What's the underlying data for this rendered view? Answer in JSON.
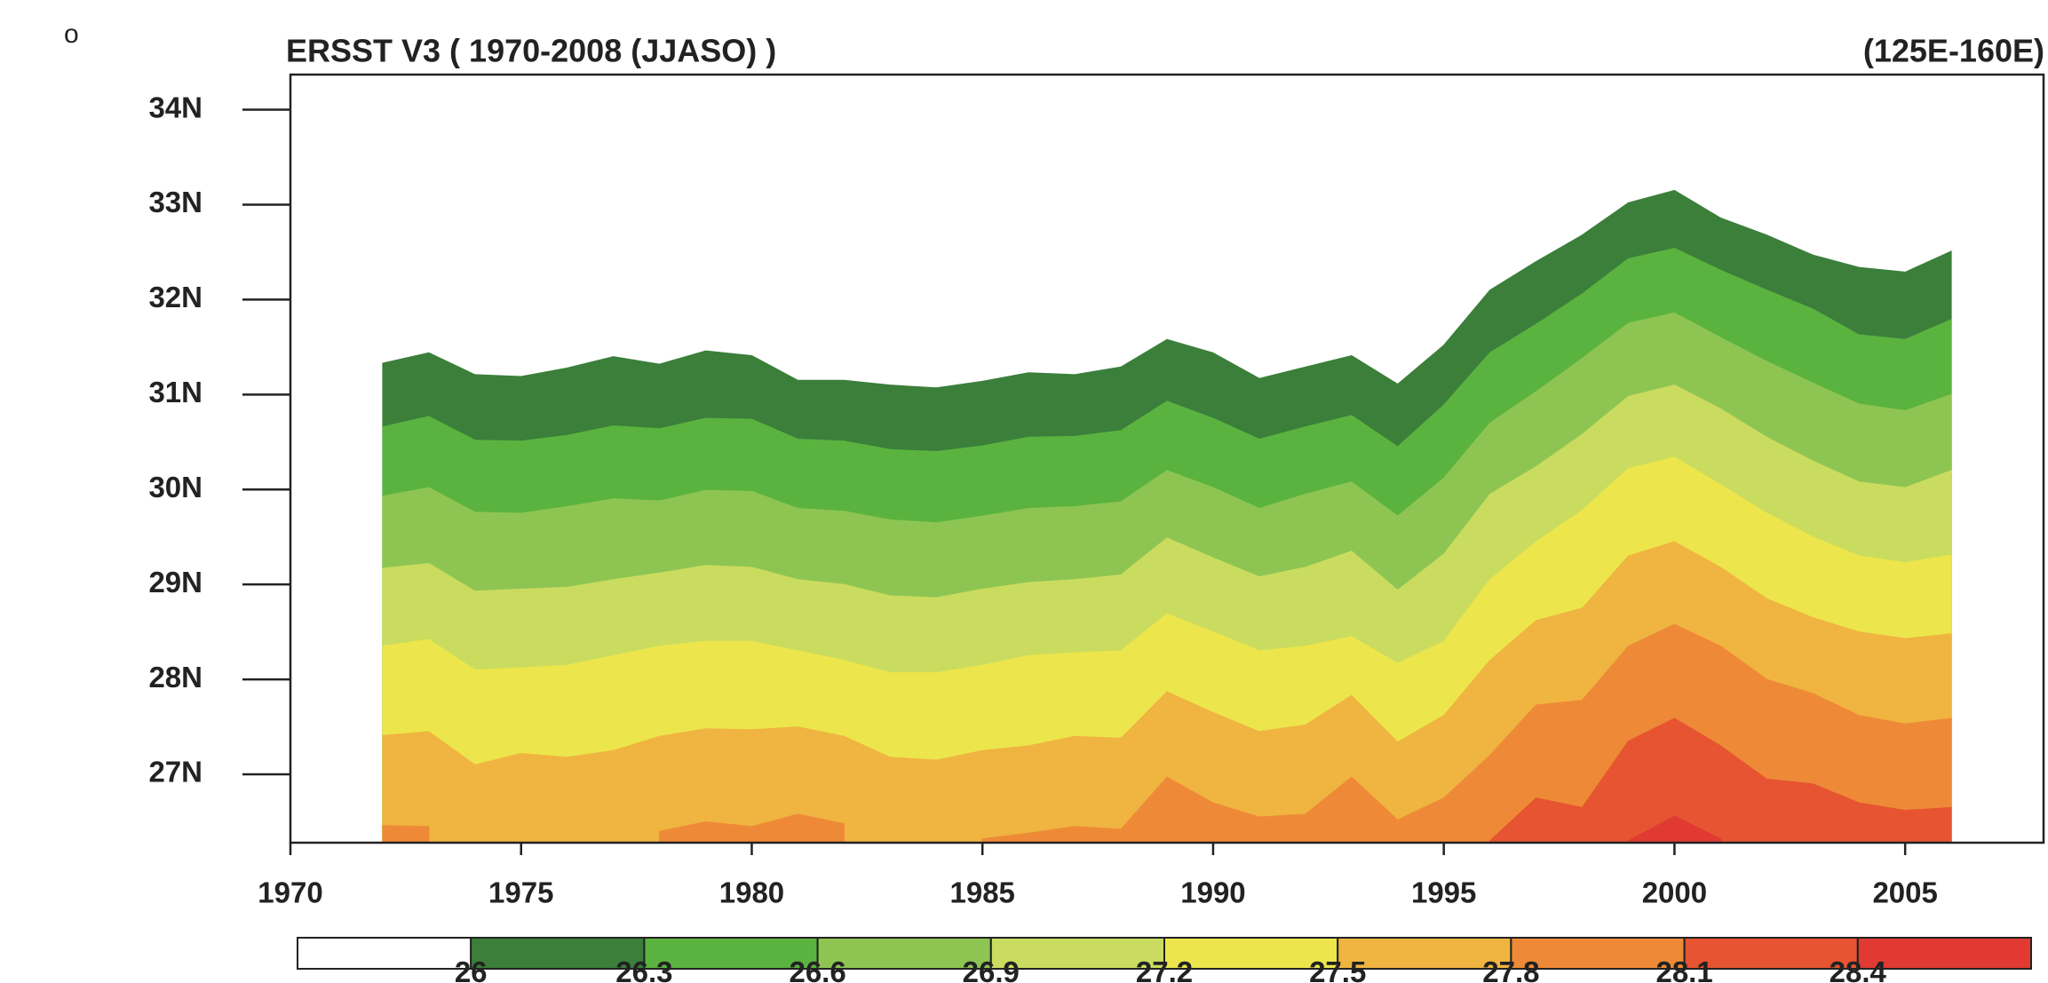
{
  "chart_data": {
    "type": "contour-area",
    "corner_mark": "o",
    "title": "ERSST V3   ( 1970-2008 (JJASO) )",
    "subtitle": "(125E-160E)",
    "x": [
      1972,
      1973,
      1974,
      1975,
      1976,
      1977,
      1978,
      1979,
      1980,
      1981,
      1982,
      1983,
      1984,
      1985,
      1986,
      1987,
      1988,
      1989,
      1990,
      1991,
      1992,
      1993,
      1994,
      1995,
      1996,
      1997,
      1998,
      1999,
      2000,
      2001,
      2002,
      2003,
      2004,
      2005,
      2006
    ],
    "xlim": [
      1970,
      2008
    ],
    "xticks": [
      1970,
      1975,
      1980,
      1985,
      1990,
      1995,
      2000,
      2005
    ],
    "ylim": [
      26.28,
      34.37
    ],
    "yticks": [
      {
        "value": 27,
        "label": "27N"
      },
      {
        "value": 28,
        "label": "28N"
      },
      {
        "value": 29,
        "label": "29N"
      },
      {
        "value": 30,
        "label": "30N"
      },
      {
        "value": 31,
        "label": "31N"
      },
      {
        "value": 32,
        "label": "32N"
      },
      {
        "value": 33,
        "label": "33N"
      },
      {
        "value": 34,
        "label": "34N"
      }
    ],
    "below_color": "#ffffff",
    "series": [
      {
        "level": 26,
        "color": "#3b7f3b",
        "values": [
          31.33,
          31.44,
          31.21,
          31.19,
          31.28,
          31.4,
          31.32,
          31.46,
          31.41,
          31.15,
          31.15,
          31.1,
          31.07,
          31.14,
          31.23,
          31.21,
          31.29,
          31.58,
          31.44,
          31.17,
          31.29,
          31.41,
          31.11,
          31.52,
          32.1,
          32.4,
          32.68,
          33.02,
          33.15,
          32.86,
          32.68,
          32.47,
          32.34,
          32.29,
          32.51
        ]
      },
      {
        "level": 26.3,
        "color": "#5bb33f",
        "values": [
          30.66,
          30.77,
          30.52,
          30.51,
          30.57,
          30.67,
          30.64,
          30.75,
          30.74,
          30.53,
          30.51,
          30.42,
          30.4,
          30.46,
          30.55,
          30.56,
          30.62,
          30.93,
          30.75,
          30.53,
          30.66,
          30.78,
          30.45,
          30.89,
          31.44,
          31.74,
          32.06,
          32.43,
          32.54,
          32.31,
          32.1,
          31.9,
          31.63,
          31.58,
          31.79
        ]
      },
      {
        "level": 26.6,
        "color": "#8ec552",
        "values": [
          29.93,
          30.02,
          29.76,
          29.75,
          29.82,
          29.9,
          29.88,
          29.99,
          29.98,
          29.8,
          29.77,
          29.68,
          29.65,
          29.72,
          29.8,
          29.82,
          29.87,
          30.2,
          30.02,
          29.8,
          29.95,
          30.08,
          29.72,
          30.12,
          30.7,
          31.03,
          31.38,
          31.75,
          31.86,
          31.6,
          31.35,
          31.12,
          30.9,
          30.83,
          31.0
        ]
      },
      {
        "level": 26.9,
        "color": "#cadc5f",
        "values": [
          29.17,
          29.22,
          28.93,
          28.95,
          28.97,
          29.05,
          29.12,
          29.2,
          29.18,
          29.05,
          29.0,
          28.88,
          28.86,
          28.95,
          29.02,
          29.05,
          29.1,
          29.49,
          29.28,
          29.08,
          29.18,
          29.35,
          28.94,
          29.32,
          29.95,
          30.24,
          30.58,
          30.98,
          31.1,
          30.85,
          30.55,
          30.3,
          30.08,
          30.02,
          30.2
        ]
      },
      {
        "level": 27.2,
        "color": "#ece64c",
        "values": [
          28.35,
          28.42,
          28.1,
          28.12,
          28.15,
          28.25,
          28.35,
          28.4,
          28.4,
          28.3,
          28.2,
          28.07,
          28.07,
          28.15,
          28.25,
          28.28,
          28.3,
          28.69,
          28.5,
          28.3,
          28.35,
          28.45,
          28.17,
          28.4,
          29.05,
          29.45,
          29.78,
          30.22,
          30.34,
          30.05,
          29.75,
          29.5,
          29.3,
          29.23,
          29.31
        ]
      },
      {
        "level": 27.5,
        "color": "#f0b440",
        "values": [
          27.41,
          27.45,
          27.1,
          27.22,
          27.18,
          27.25,
          27.4,
          27.48,
          27.47,
          27.5,
          27.4,
          27.18,
          27.15,
          27.25,
          27.3,
          27.4,
          27.38,
          27.87,
          27.65,
          27.45,
          27.52,
          27.83,
          27.34,
          27.62,
          28.2,
          28.62,
          28.75,
          29.3,
          29.45,
          29.18,
          28.85,
          28.65,
          28.5,
          28.43,
          28.48
        ]
      },
      {
        "level": 27.8,
        "color": "#ee8a37",
        "values": [
          26.46,
          26.45,
          null,
          null,
          null,
          null,
          26.4,
          26.5,
          26.45,
          26.58,
          26.48,
          null,
          null,
          26.32,
          26.38,
          26.45,
          26.42,
          26.97,
          26.7,
          26.55,
          26.58,
          26.97,
          26.52,
          26.75,
          27.2,
          27.73,
          27.78,
          28.35,
          28.58,
          28.35,
          28.0,
          27.85,
          27.62,
          27.53,
          27.59
        ]
      },
      {
        "level": 28.1,
        "color": "#e65431",
        "values": [
          null,
          null,
          null,
          null,
          null,
          null,
          null,
          null,
          null,
          null,
          null,
          null,
          null,
          null,
          null,
          null,
          null,
          null,
          null,
          null,
          null,
          null,
          null,
          null,
          26.3,
          26.75,
          26.65,
          27.35,
          27.59,
          27.3,
          26.95,
          26.9,
          26.7,
          26.62,
          26.65
        ]
      },
      {
        "level": 28.4,
        "color": "#e03a33",
        "values": [
          null,
          null,
          null,
          null,
          null,
          null,
          null,
          null,
          null,
          null,
          null,
          null,
          null,
          null,
          null,
          null,
          null,
          null,
          null,
          null,
          null,
          null,
          null,
          null,
          null,
          null,
          null,
          26.3,
          26.56,
          26.32,
          null,
          null,
          null,
          null,
          null
        ]
      }
    ]
  }
}
